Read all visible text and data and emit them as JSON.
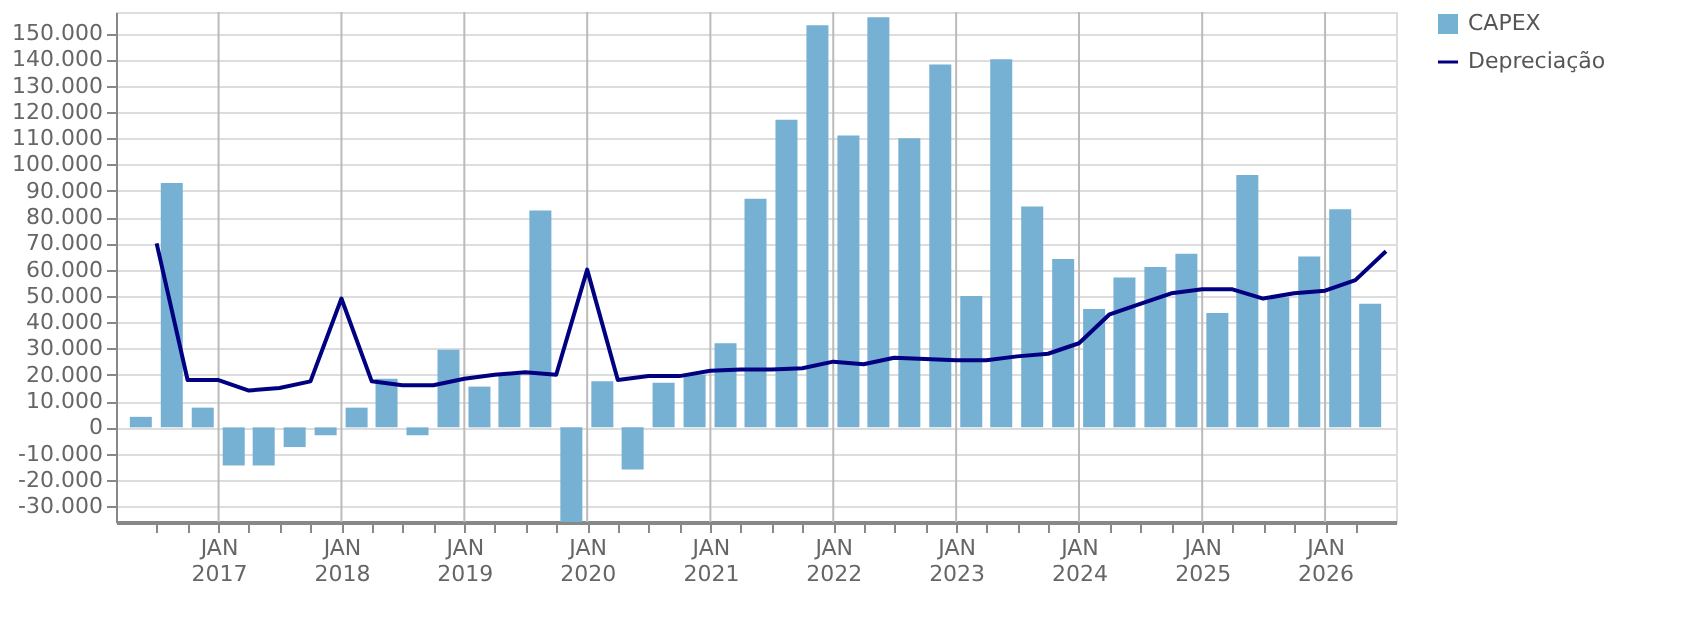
{
  "chart_data": {
    "type": "bar",
    "series": [
      {
        "name": "CAPEX",
        "color": "#76b0d2",
        "x": [
          "2016-05-15",
          "2016-08-15",
          "2016-11-15",
          "2017-02-15",
          "2017-05-15",
          "2017-08-15",
          "2017-11-15",
          "2018-02-15",
          "2018-05-15",
          "2018-08-15",
          "2018-11-15",
          "2019-02-15",
          "2019-05-15",
          "2019-08-15",
          "2019-11-15",
          "2020-02-15",
          "2020-05-15",
          "2020-08-15",
          "2020-11-15",
          "2021-02-15",
          "2021-05-15",
          "2021-08-15",
          "2021-11-15",
          "2022-02-15",
          "2022-05-15",
          "2022-08-15",
          "2022-11-15",
          "2023-02-15",
          "2023-05-15",
          "2023-08-15",
          "2023-11-15",
          "2024-02-15",
          "2024-05-15",
          "2024-08-15",
          "2024-11-15",
          "2025-02-15",
          "2025-05-15",
          "2025-08-15",
          "2025-11-15",
          "2026-02-15",
          "2026-05-15"
        ],
        "values": [
          4000,
          93000,
          7500,
          -14500,
          -14500,
          -7500,
          -3000,
          7500,
          18500,
          -3000,
          29500,
          15500,
          20000,
          82500,
          -36000,
          17500,
          -16000,
          17000,
          20000,
          32000,
          87000,
          117000,
          153000,
          111000,
          156000,
          110000,
          138000,
          50000,
          140000,
          84000,
          64000,
          45000,
          57000,
          61000,
          66000,
          43500,
          96000,
          49500,
          65000,
          83000,
          47000
        ]
      },
      {
        "name": "Depreciação",
        "type": "line",
        "color": "#000080",
        "x": [
          "2016-07-01",
          "2016-10-01",
          "2017-01-01",
          "2017-04-01",
          "2017-07-01",
          "2017-10-01",
          "2018-01-01",
          "2018-04-01",
          "2018-07-01",
          "2018-10-01",
          "2019-01-01",
          "2019-04-01",
          "2019-07-01",
          "2019-10-01",
          "2020-01-01",
          "2020-04-01",
          "2020-07-01",
          "2020-10-01",
          "2021-01-01",
          "2021-04-01",
          "2021-07-01",
          "2021-10-01",
          "2022-01-01",
          "2022-04-01",
          "2022-07-01",
          "2022-10-01",
          "2023-01-01",
          "2023-04-01",
          "2023-07-01",
          "2023-10-01",
          "2024-01-01",
          "2024-04-01",
          "2024-07-01",
          "2024-10-01",
          "2025-01-01",
          "2025-04-01",
          "2025-07-01",
          "2025-10-01",
          "2026-01-01",
          "2026-04-01",
          "2026-07-01"
        ],
        "values": [
          70000,
          18000,
          18000,
          14000,
          15000,
          17500,
          49000,
          17500,
          16000,
          16000,
          18500,
          20000,
          21000,
          20000,
          60000,
          18000,
          19500,
          19500,
          21500,
          22000,
          22000,
          22500,
          25000,
          24000,
          26500,
          26000,
          25500,
          25500,
          27000,
          28000,
          32000,
          43000,
          47000,
          51000,
          52500,
          52500,
          49000,
          51000,
          52000,
          56000,
          67000
        ]
      }
    ],
    "xlim": [
      "2016-04-01",
      "2026-07-01"
    ],
    "xticks": [
      {
        "value": "2016-07-01",
        "label": null
      },
      {
        "value": "2016-10-01",
        "label": null
      },
      {
        "value": "2017-01-01",
        "label": "JAN 2017"
      },
      {
        "value": "2017-04-01",
        "label": null
      },
      {
        "value": "2017-07-01",
        "label": null
      },
      {
        "value": "2017-10-01",
        "label": null
      },
      {
        "value": "2018-01-01",
        "label": "JAN 2018"
      },
      {
        "value": "2018-04-01",
        "label": null
      },
      {
        "value": "2018-07-01",
        "label": null
      },
      {
        "value": "2018-10-01",
        "label": null
      },
      {
        "value": "2019-01-01",
        "label": "JAN 2019"
      },
      {
        "value": "2019-04-01",
        "label": null
      },
      {
        "value": "2019-07-01",
        "label": null
      },
      {
        "value": "2019-10-01",
        "label": null
      },
      {
        "value": "2020-01-01",
        "label": "JAN 2020"
      },
      {
        "value": "2020-04-01",
        "label": null
      },
      {
        "value": "2020-07-01",
        "label": null
      },
      {
        "value": "2020-10-01",
        "label": null
      },
      {
        "value": "2021-01-01",
        "label": "JAN 2021"
      },
      {
        "value": "2021-04-01",
        "label": null
      },
      {
        "value": "2021-07-01",
        "label": null
      },
      {
        "value": "2021-10-01",
        "label": null
      },
      {
        "value": "2022-01-01",
        "label": "JAN 2022"
      },
      {
        "value": "2022-04-01",
        "label": null
      },
      {
        "value": "2022-07-01",
        "label": null
      },
      {
        "value": "2022-10-01",
        "label": null
      },
      {
        "value": "2023-01-01",
        "label": "JAN 2023"
      },
      {
        "value": "2023-04-01",
        "label": null
      },
      {
        "value": "2023-07-01",
        "label": null
      },
      {
        "value": "2023-10-01",
        "label": null
      },
      {
        "value": "2024-01-01",
        "label": "JAN 2024"
      },
      {
        "value": "2024-04-01",
        "label": null
      },
      {
        "value": "2024-07-01",
        "label": null
      },
      {
        "value": "2024-10-01",
        "label": null
      },
      {
        "value": "2025-01-01",
        "label": "JAN 2025"
      },
      {
        "value": "2025-04-01",
        "label": null
      },
      {
        "value": "2025-07-01",
        "label": null
      },
      {
        "value": "2025-10-01",
        "label": null
      },
      {
        "value": "2026-01-01",
        "label": "JAN 2026"
      },
      {
        "value": "2026-04-01",
        "label": null
      }
    ],
    "ylim": [
      -36000,
      158000
    ],
    "yticks": [
      {
        "value": -30000,
        "label": "-30.000"
      },
      {
        "value": -20000,
        "label": "-20.000"
      },
      {
        "value": -10000,
        "label": "-10.000"
      },
      {
        "value": 0,
        "label": "0"
      },
      {
        "value": 10000,
        "label": "10.000"
      },
      {
        "value": 20000,
        "label": "20.000"
      },
      {
        "value": 30000,
        "label": "30.000"
      },
      {
        "value": 40000,
        "label": "40.000"
      },
      {
        "value": 50000,
        "label": "50.000"
      },
      {
        "value": 60000,
        "label": "60.000"
      },
      {
        "value": 70000,
        "label": "70.000"
      },
      {
        "value": 80000,
        "label": "80.000"
      },
      {
        "value": 90000,
        "label": "90.000"
      },
      {
        "value": 100000,
        "label": "100.000"
      },
      {
        "value": 110000,
        "label": "110.000"
      },
      {
        "value": 120000,
        "label": "120.000"
      },
      {
        "value": 130000,
        "label": "130.000"
      },
      {
        "value": 140000,
        "label": "140.000"
      },
      {
        "value": 150000,
        "label": "150.000"
      }
    ],
    "grid": true,
    "legend": "top right"
  }
}
